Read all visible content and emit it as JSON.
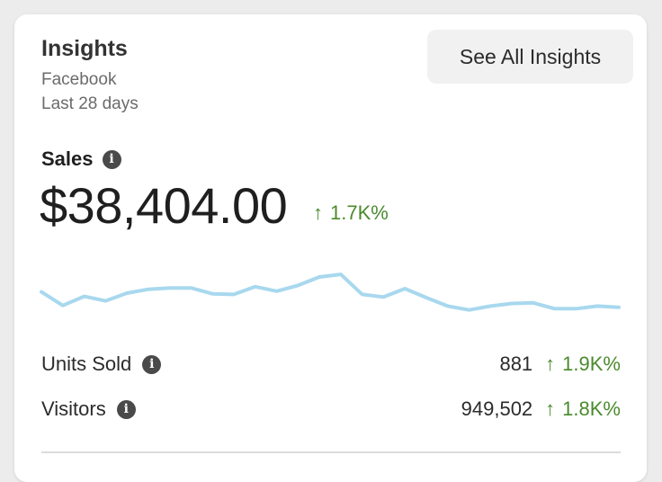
{
  "header": {
    "title": "Insights",
    "platform": "Facebook",
    "period": "Last 28 days",
    "see_all_label": "See All Insights"
  },
  "sales": {
    "label": "Sales",
    "value": "$38,404.00",
    "change": "1.7K%",
    "info_icon": "info-icon"
  },
  "metrics": [
    {
      "label": "Units Sold",
      "value": "881",
      "change": "1.9K%"
    },
    {
      "label": "Visitors",
      "value": "949,502",
      "change": "1.8K%"
    }
  ],
  "colors": {
    "positive": "#4b8a2e",
    "sparkline": "#a8d8ee"
  },
  "chart_data": {
    "type": "line",
    "values": [
      52,
      31,
      45,
      38,
      50,
      56,
      58,
      58,
      49,
      48,
      60,
      53,
      62,
      75,
      79,
      48,
      44,
      57,
      43,
      30,
      24,
      30,
      34,
      35,
      26,
      26,
      30,
      28
    ]
  }
}
